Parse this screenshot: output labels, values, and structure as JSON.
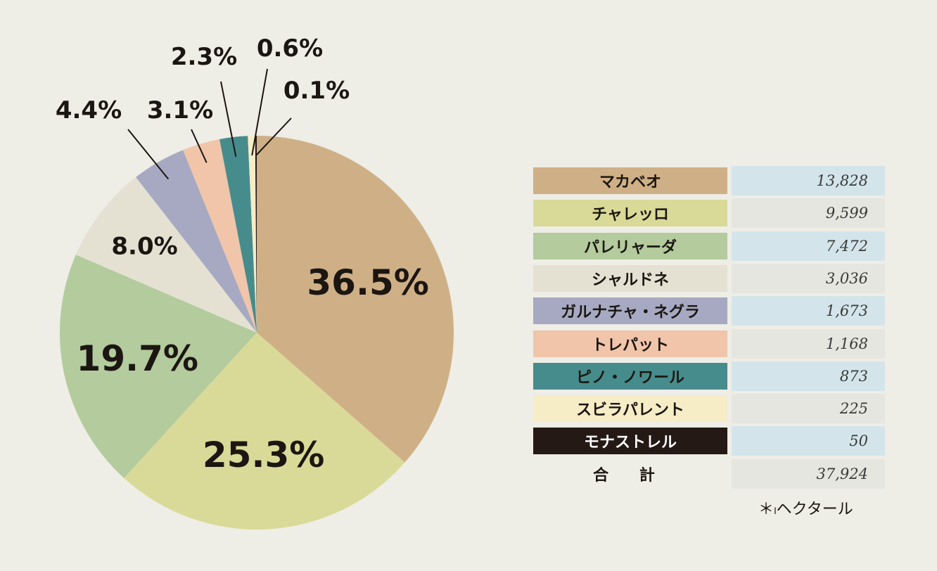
{
  "chart_data": {
    "type": "pie",
    "categories": [
      "マカベオ",
      "チャレッロ",
      "パレリャーダ",
      "シャルドネ",
      "ガルナチャ・ネグラ",
      "トレパット",
      "ピノ・ノワール",
      "スビラパレント",
      "モナストレル"
    ],
    "values": [
      13828,
      9599,
      7472,
      3036,
      1673,
      1168,
      873,
      225,
      50
    ],
    "value_labels": [
      "13,828",
      "9,599",
      "7,472",
      "3,036",
      "1,673",
      "1,168",
      "873",
      "225",
      "50"
    ],
    "percent_labels": [
      "36.5%",
      "25.3%",
      "19.7%",
      "8.0%",
      "4.4%",
      "3.1%",
      "2.3%",
      "0.6%",
      "0.1%"
    ],
    "colors": [
      "#cfb086",
      "#d9da98",
      "#b3cb9d",
      "#e4e1d2",
      "#a6a9c1",
      "#f0c5a9",
      "#478c8c",
      "#f6ecc6",
      "#251916"
    ],
    "legend_value_bg": [
      "#d3e5eb",
      "#e6e6e0",
      "#d3e5eb",
      "#e6e6e0",
      "#d3e5eb",
      "#e6e6e0",
      "#d3e5eb",
      "#e6e6e0",
      "#d3e5eb"
    ],
    "legend_text_colors": [
      "#1c1612",
      "#1c1612",
      "#1c1612",
      "#1c1612",
      "#1c1612",
      "#1c1612",
      "#1c1612",
      "#1c1612",
      "#ffffff"
    ],
    "total_label": "合 計",
    "total_value": "37,924",
    "unit_note": "＊ₗヘクタール",
    "legend_placement": "right"
  }
}
